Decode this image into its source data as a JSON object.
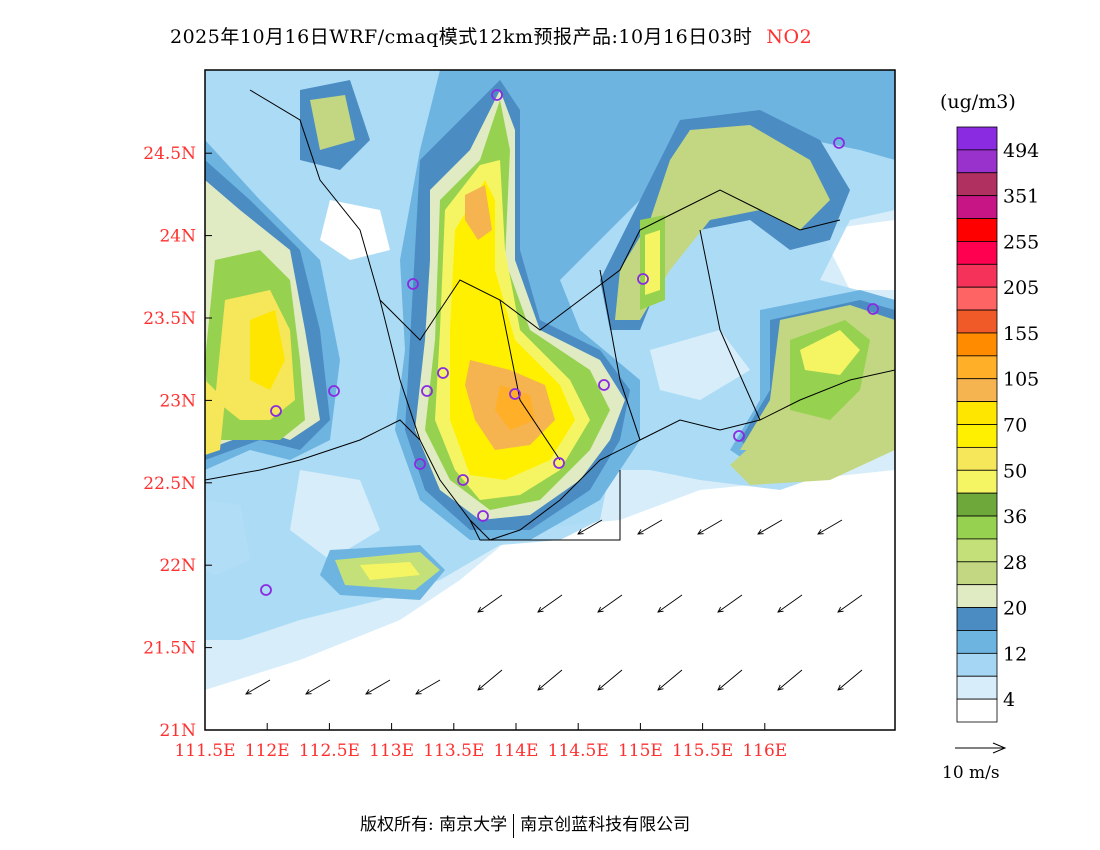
{
  "title": {
    "main": "2025年10月16日WRF/cmaq模式12km预报产品:10月16日03时",
    "species": "NO2"
  },
  "map": {
    "lat_labels": [
      "24.5N",
      "24N",
      "23.5N",
      "23N",
      "22.5N",
      "22N",
      "21.5N",
      "21N"
    ],
    "lon_labels": [
      "111.5E",
      "112E",
      "112.5E",
      "113E",
      "113.5E",
      "114E",
      "114.5E",
      "115E",
      "115.5E",
      "116E"
    ],
    "lon_range": [
      111.5,
      116.55
    ],
    "lat_range": [
      21.0,
      24.75
    ]
  },
  "colorbar": {
    "unit": "(ug/m3)",
    "colors": [
      "#8a2be2",
      "#9932cc",
      "#b03060",
      "#c71585",
      "#ff0000",
      "#ff0050",
      "#f5325a",
      "#ff6464",
      "#f05a28",
      "#ff8c00",
      "#ffaf28",
      "#f5b450",
      "#ffe600",
      "#fff000",
      "#f5e65a",
      "#f5f564",
      "#6ea83a",
      "#96d250",
      "#c3e178",
      "#c3d782",
      "#e1ebc3",
      "#4b8cc3",
      "#6eb4e1",
      "#a5d7f5",
      "#d7eefa",
      "#ffffff"
    ],
    "labels": [
      "494",
      "351",
      "255",
      "205",
      "155",
      "105",
      "70",
      "50",
      "36",
      "28",
      "20",
      "12",
      "4"
    ]
  },
  "wind_legend": {
    "label": "10 m/s"
  },
  "footer": {
    "left": "版权所有: 南京大学",
    "right": "南京创蓝科技有限公司"
  }
}
